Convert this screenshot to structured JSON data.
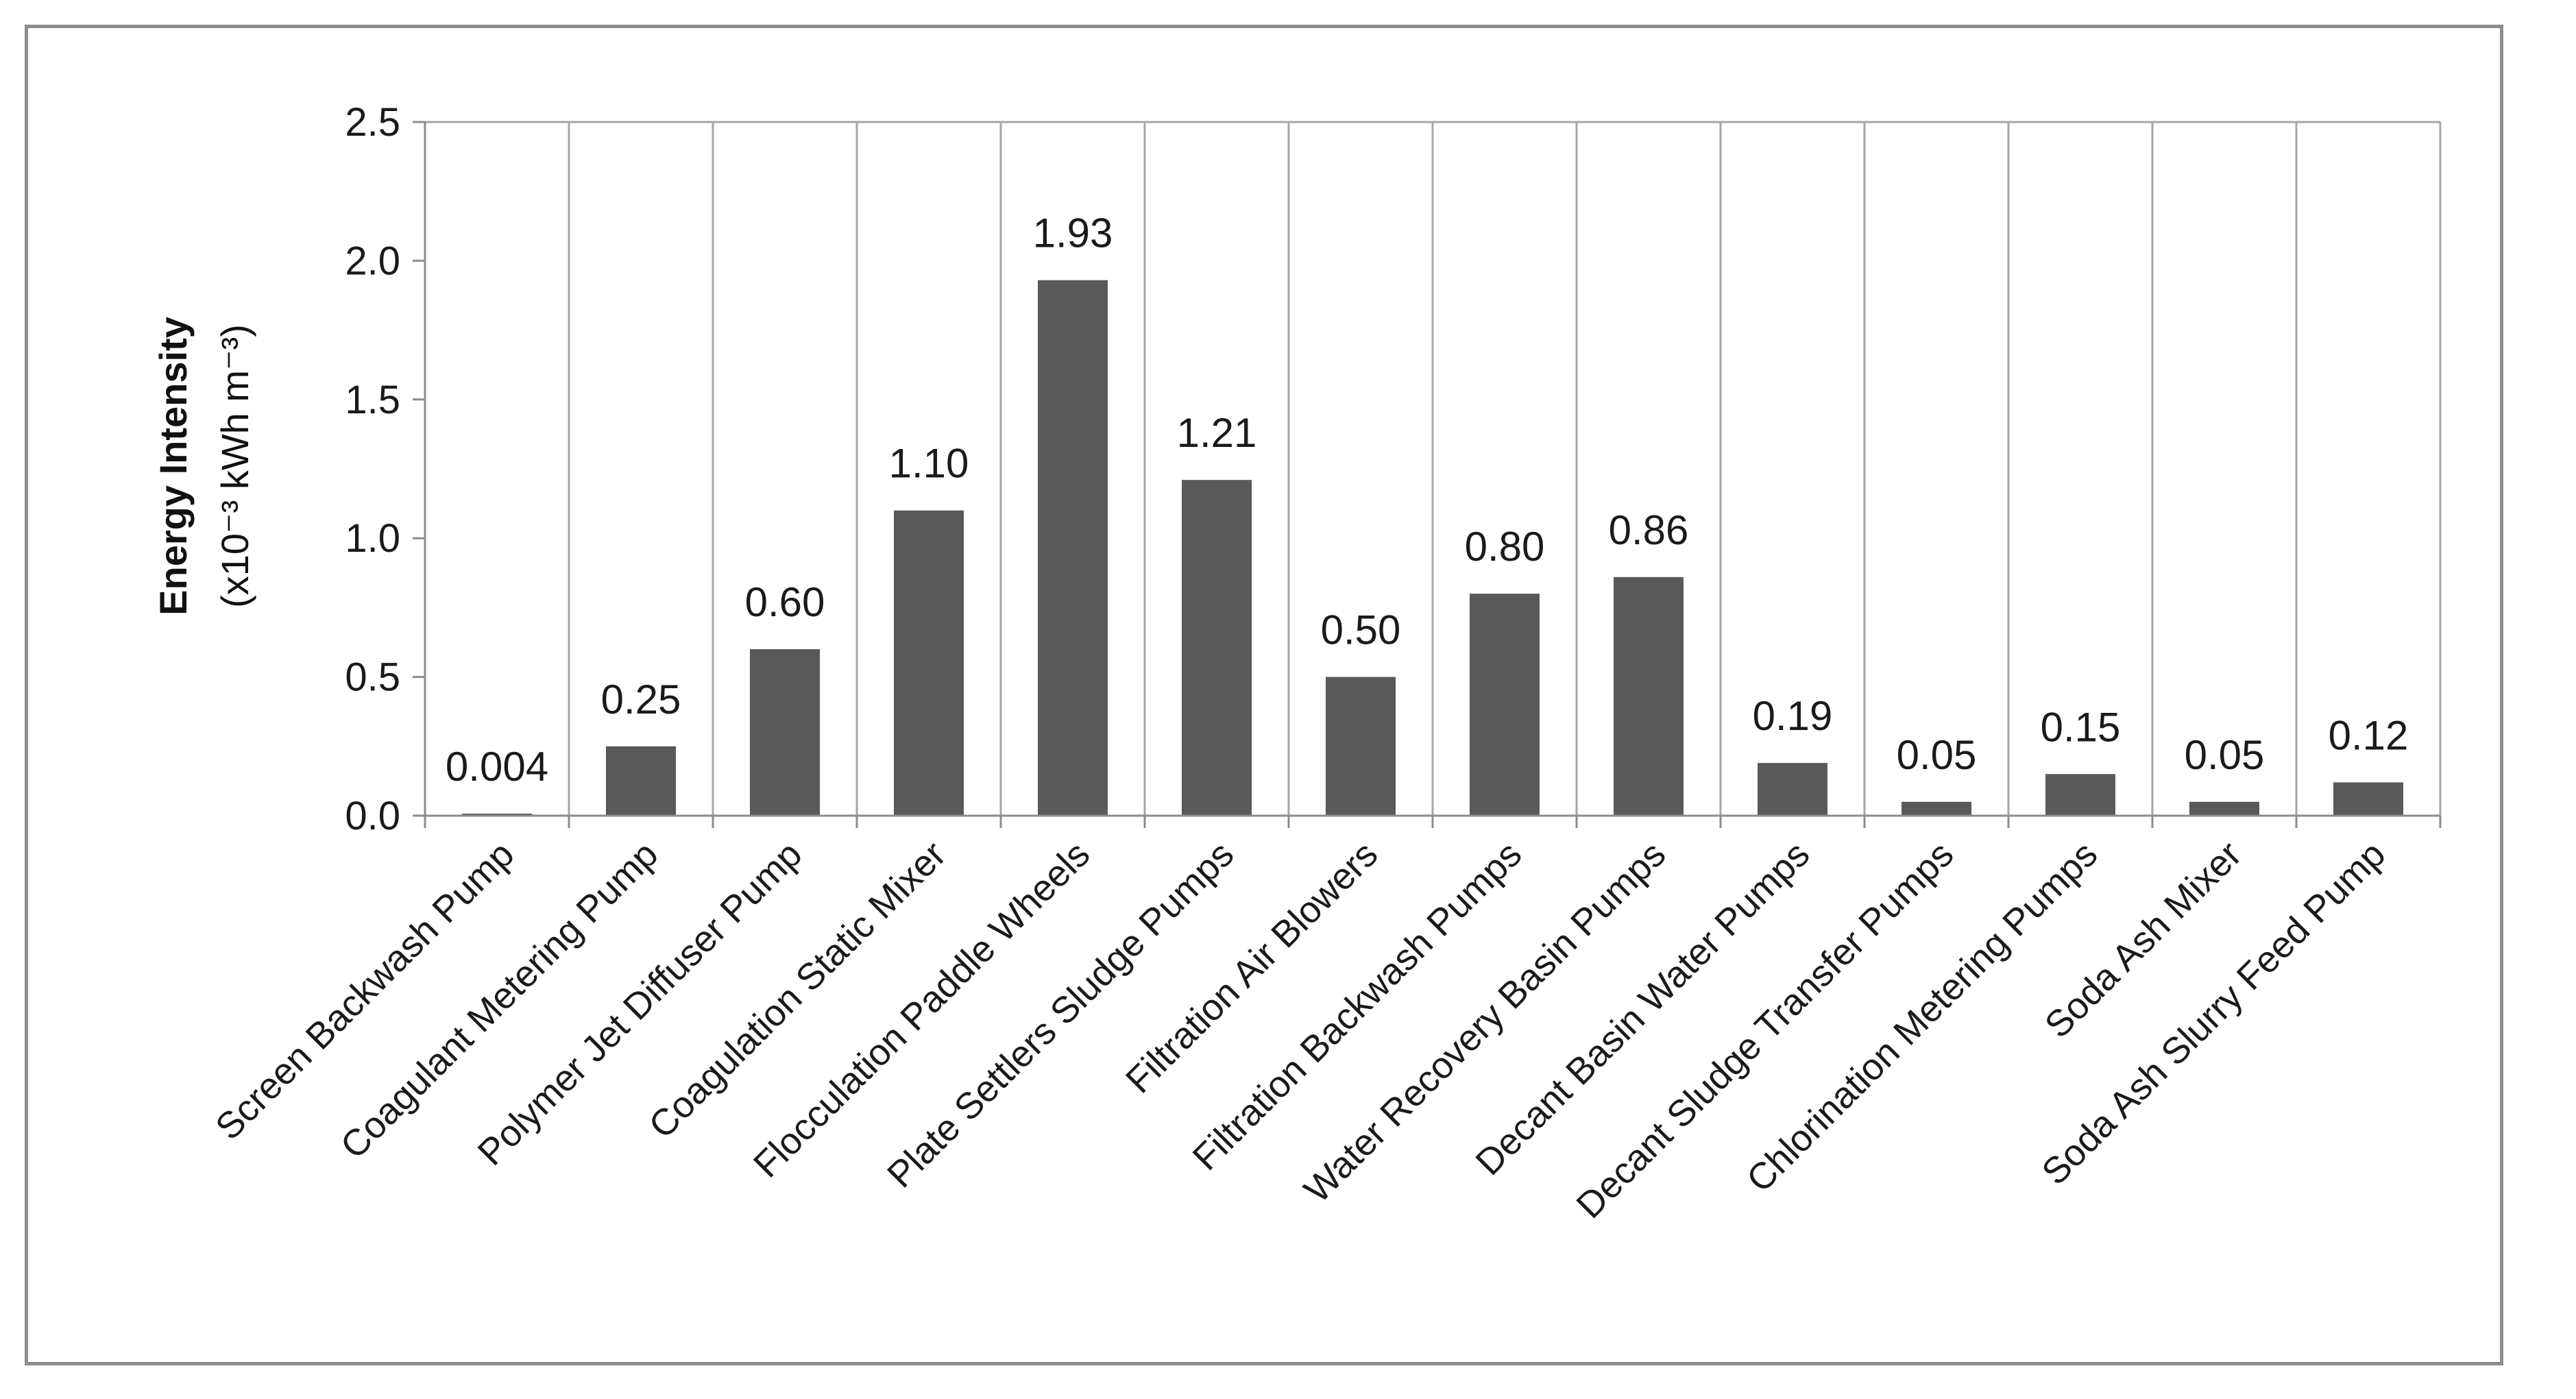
{
  "chart_data": {
    "type": "bar",
    "title": "",
    "xlabel": "",
    "ylabel": "Energy Intensity",
    "ylabel_line2": "(x10⁻³ kWh m⁻³)",
    "ylim": [
      0,
      2.5
    ],
    "yticks": [
      "0.0",
      "0.5",
      "1.0",
      "1.5",
      "2.0",
      "2.5"
    ],
    "grid": "vertical category separators",
    "bar_color": "#595959",
    "categories": [
      "Screen Backwash Pump",
      "Coagulant Metering Pump",
      "Polymer Jet Diffuser Pump",
      "Coagulation Static Mixer",
      "Flocculation Paddle Wheels",
      "Plate Settlers Sludge Pumps",
      "Filtration Air Blowers",
      "Filtration Backwash Pumps",
      "Water Recovery Basin Pumps",
      "Decant Basin Water Pumps",
      "Decant Sludge Transfer Pumps",
      "Chlorination Metering Pumps",
      "Soda Ash Mixer",
      "Soda Ash Slurry Feed Pump"
    ],
    "values": [
      0.004,
      0.25,
      0.6,
      1.1,
      1.93,
      1.21,
      0.5,
      0.8,
      0.86,
      0.19,
      0.05,
      0.15,
      0.05,
      0.12
    ],
    "data_labels": [
      "0.004",
      "0.25",
      "0.60",
      "1.10",
      "1.93",
      "1.21",
      "0.50",
      "0.80",
      "0.86",
      "0.19",
      "0.05",
      "0.15",
      "0.05",
      "0.12"
    ]
  }
}
